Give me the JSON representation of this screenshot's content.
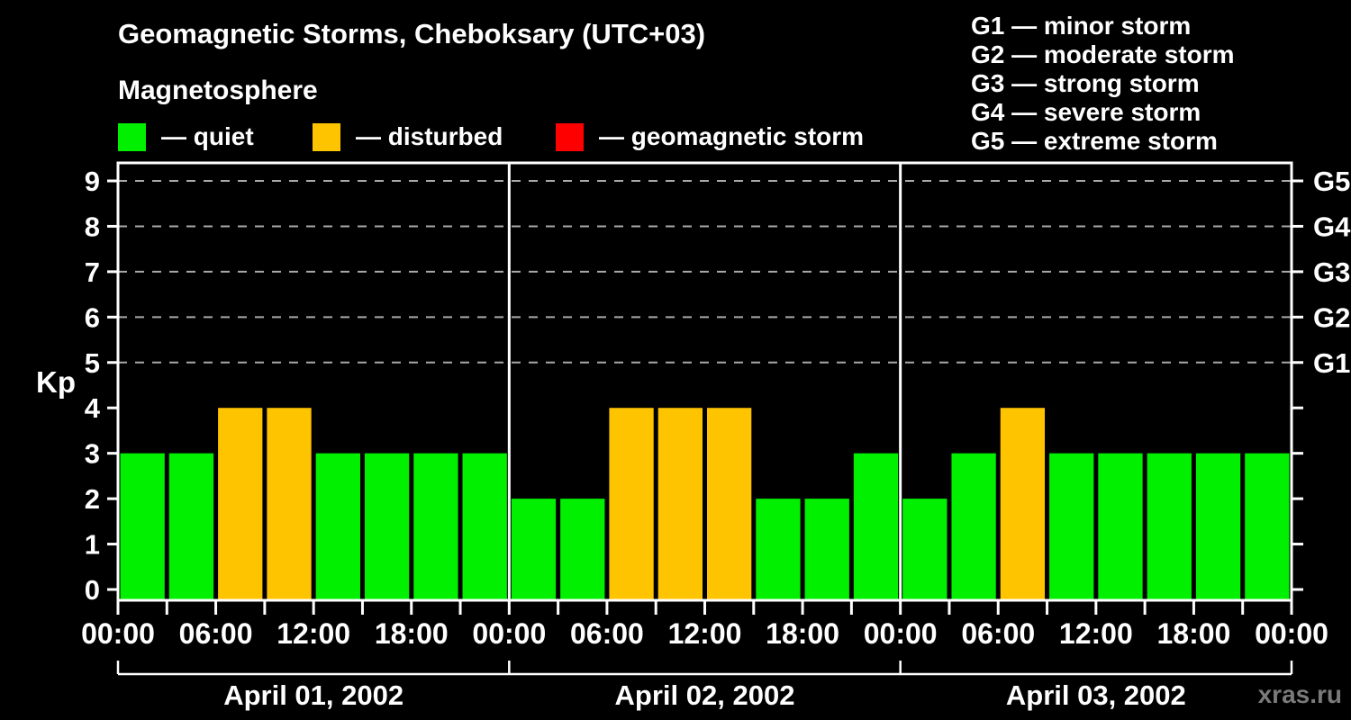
{
  "header": {
    "title": "Geomagnetic Storms, Cheboksary (UTC+03)",
    "subtitle": "Magnetosphere"
  },
  "legend": {
    "items": [
      {
        "label": "— quiet",
        "color": "#00f000"
      },
      {
        "label": "— disturbed",
        "color": "#ffc400"
      },
      {
        "label": "— geomagnetic storm",
        "color": "#ff0000"
      }
    ]
  },
  "g_scale_legend": {
    "items": [
      {
        "text": "G1 — minor storm"
      },
      {
        "text": "G2 — moderate storm"
      },
      {
        "text": "G3 — strong storm"
      },
      {
        "text": "G4 — severe storm"
      },
      {
        "text": "G5 — extreme storm"
      }
    ]
  },
  "watermark": "xras.ru",
  "chart_data": {
    "type": "bar",
    "title": "Geomagnetic Storms, Cheboksary (UTC+03)",
    "ylabel": "Kp",
    "ylim": [
      0,
      9
    ],
    "y_ticks": [
      0,
      1,
      2,
      3,
      4,
      5,
      6,
      7,
      8,
      9
    ],
    "grid": "dashed horizontal lines at storm levels only",
    "grid_levels": [
      {
        "kp": 5,
        "label": "G1"
      },
      {
        "kp": 6,
        "label": "G2"
      },
      {
        "kp": 7,
        "label": "G3"
      },
      {
        "kp": 8,
        "label": "G4"
      },
      {
        "kp": 9,
        "label": "G5"
      }
    ],
    "bar_interval_hours": 3,
    "time_tick_labels": [
      "00:00",
      "06:00",
      "12:00",
      "18:00"
    ],
    "closing_time_label": "00:00",
    "days": [
      {
        "date": "April 01, 2002",
        "kp_values": [
          3,
          3,
          4,
          4,
          3,
          3,
          3,
          3
        ]
      },
      {
        "date": "April 02, 2002",
        "kp_values": [
          2,
          2,
          4,
          4,
          4,
          2,
          2,
          3
        ]
      },
      {
        "date": "April 03, 2002",
        "kp_values": [
          2,
          3,
          4,
          3,
          3,
          3,
          3,
          3
        ]
      }
    ],
    "color_rule": {
      "quiet_kp_max": 3,
      "disturbed_kp": 4,
      "storm_kp_min": 5
    },
    "colors": {
      "quiet": "#00f000",
      "disturbed": "#ffc400",
      "storm": "#ff0000"
    }
  }
}
